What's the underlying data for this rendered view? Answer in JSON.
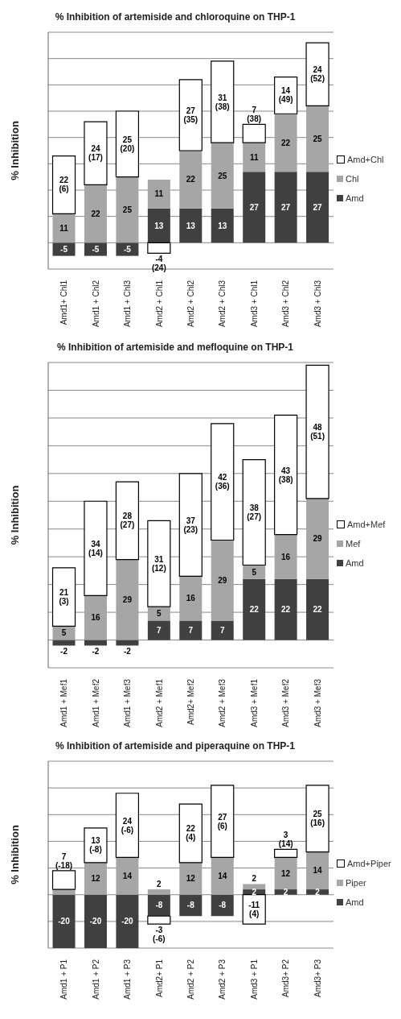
{
  "chart_data": [
    {
      "type": "bar",
      "stacked": true,
      "title": "% Inhibition of artemiside and chloroquine on THP-1",
      "ylabel": "% Inhibition",
      "categories": [
        "Amd1+ Chl1",
        "Amd1 + Chl2",
        "Amd1 + Chl3",
        "Amd2 + Chl1",
        "Amd2 + Chl2",
        "Amd2 + Chl3",
        "Amd3 + Chl1",
        "Amd3 + Chl2",
        "Amd3 + Chl3"
      ],
      "series": [
        {
          "name": "Amd",
          "color": "#404040",
          "values": [
            -5,
            -5,
            -5,
            13,
            13,
            13,
            27,
            27,
            27
          ],
          "value_labels": [
            "-5",
            "-5",
            "-5",
            "13",
            "13",
            "13",
            "27",
            "27",
            "27"
          ]
        },
        {
          "name": "Chl",
          "color": "#a6a6a6",
          "values": [
            11,
            22,
            25,
            11,
            22,
            25,
            11,
            22,
            25
          ],
          "value_labels": [
            "11",
            "22",
            "25",
            "11",
            "22",
            "25",
            "11",
            "22",
            "25"
          ]
        },
        {
          "name": "Amd+Chl",
          "color": "#ffffff",
          "values": [
            22,
            24,
            25,
            -4,
            27,
            31,
            7,
            14,
            24
          ],
          "value_labels": [
            "22 (6)",
            "24 (17)",
            "25 (20)",
            "-4 (24)",
            "27 (35)",
            "31 (38)",
            "7 (38)",
            "14 (49)",
            "24 (52)"
          ]
        }
      ],
      "ylim": [
        -10,
        80
      ],
      "yticks": [
        {
          "value": -10,
          "label": null
        },
        {
          "value": 0,
          "label": null
        },
        {
          "value": 10,
          "label": null
        },
        {
          "value": 20,
          "label": null
        },
        {
          "value": 30,
          "label": null
        },
        {
          "value": 40,
          "label": null
        },
        {
          "value": 50,
          "label": null
        },
        {
          "value": 60,
          "label": null
        },
        {
          "value": 70,
          "label": null
        },
        {
          "value": 80,
          "label": null
        }
      ],
      "grid": "y",
      "legend": "right",
      "tick_labels": "x"
    },
    {
      "type": "bar",
      "stacked": true,
      "title": "% Inhibition of artemiside and mefloquine on THP-1",
      "ylabel": "% Inhibition",
      "categories": [
        "Amd1 + Mef1",
        "Amd1 + Mef2",
        "Amd1 + Mef3",
        "Amd2 + Mef1",
        "Amd2+ Mef2",
        "Amd2 + Mef3",
        "Amd3 + Mef1",
        "Amd3 + Mef2",
        "Amd3 + Mef3"
      ],
      "series": [
        {
          "name": "Amd",
          "color": "#404040",
          "values": [
            -2,
            -2,
            -2,
            7,
            7,
            7,
            22,
            22,
            22
          ],
          "value_labels": [
            "-2",
            "-2",
            "-2",
            "7",
            "7",
            "7",
            "22",
            "22",
            "22"
          ]
        },
        {
          "name": "Mef",
          "color": "#a6a6a6",
          "values": [
            5,
            16,
            29,
            5,
            16,
            29,
            5,
            16,
            29
          ],
          "value_labels": [
            "5",
            "16",
            "29",
            "5",
            "16",
            "29",
            "5",
            "16",
            "29"
          ]
        },
        {
          "name": "Amd+Mef",
          "color": "#ffffff",
          "values": [
            21,
            34,
            28,
            31,
            37,
            42,
            38,
            43,
            48
          ],
          "value_labels": [
            "21 (3)",
            "34 (14)",
            "28 (27)",
            "31 (12)",
            "37 (23)",
            "42 (36)",
            "38 (27)",
            "43 (38)",
            "48 (51)"
          ]
        }
      ],
      "ylim": [
        -10,
        100
      ],
      "yticks": [
        {
          "value": -10,
          "label": null
        },
        {
          "value": 0,
          "label": null
        },
        {
          "value": 10,
          "label": null
        },
        {
          "value": 20,
          "label": null
        },
        {
          "value": 30,
          "label": null
        },
        {
          "value": 40,
          "label": null
        },
        {
          "value": 50,
          "label": null
        },
        {
          "value": 60,
          "label": null
        },
        {
          "value": 70,
          "label": null
        },
        {
          "value": 80,
          "label": null
        },
        {
          "value": 90,
          "label": null
        },
        {
          "value": 100,
          "label": null
        }
      ],
      "grid": "y",
      "legend": "right",
      "tick_labels": "x"
    },
    {
      "type": "bar",
      "stacked": true,
      "title": "% Inhibition of artemiside and piperaquine on THP-1",
      "ylabel": "% Inhibition",
      "categories": [
        "Amd1  + P1",
        "Amd1 + P2",
        "Amd1 + P3",
        "Amd2+ P1",
        "Amd2 + P2",
        "Amd2 + P3",
        "Amd3 + P1",
        "Amd3+ P2",
        "Amd3+ P3"
      ],
      "series": [
        {
          "name": "Amd",
          "color": "#404040",
          "values": [
            -20,
            -20,
            -20,
            -8,
            -8,
            -8,
            2,
            2,
            2
          ],
          "value_labels": [
            "-20",
            "-20",
            "-20",
            "-8",
            "-8",
            "-8",
            "2",
            "2",
            "2"
          ]
        },
        {
          "name": "Piper",
          "color": "#a6a6a6",
          "values": [
            2,
            12,
            14,
            2,
            12,
            14,
            2,
            12,
            14
          ],
          "value_labels": [
            null,
            "12",
            "14",
            "2",
            "12",
            "14",
            "2",
            "12",
            "14"
          ]
        },
        {
          "name": "Amd+Piper",
          "color": "#ffffff",
          "values": [
            7,
            13,
            24,
            -3,
            22,
            27,
            -11,
            3,
            25
          ],
          "value_labels": [
            "7 (-18)",
            "13 (-8)",
            "24 (-6)",
            "-3 (-6)",
            "22 (4)",
            "27 (6)",
            "-11 (4)",
            "3 (14)",
            "25 (16)"
          ]
        }
      ],
      "ylim": [
        -20,
        50
      ],
      "yticks": [
        {
          "value": -20,
          "label": null
        },
        {
          "value": -10,
          "label": null
        },
        {
          "value": 0,
          "label": null
        },
        {
          "value": 10,
          "label": null
        },
        {
          "value": 20,
          "label": null
        },
        {
          "value": 30,
          "label": null
        },
        {
          "value": 40,
          "label": null
        },
        {
          "value": 50,
          "label": null
        }
      ],
      "grid": "y",
      "legend": "right",
      "tick_labels": "x"
    }
  ]
}
